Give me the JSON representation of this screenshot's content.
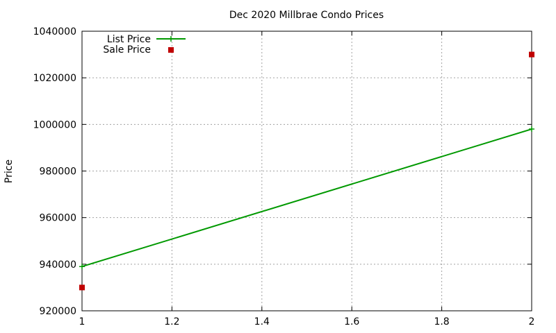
{
  "chart_data": {
    "type": "line",
    "title": "Dec 2020 Millbrae Condo Prices",
    "xlabel": "",
    "ylabel": "Price",
    "xlim": [
      1,
      2
    ],
    "ylim": [
      920000,
      1040000
    ],
    "xticks": [
      "1",
      "1.2",
      "1.4",
      "1.6",
      "1.8",
      "2"
    ],
    "xtick_values": [
      1,
      1.2,
      1.4,
      1.6,
      1.8,
      2
    ],
    "yticks": [
      "920000",
      "940000",
      "960000",
      "980000",
      "1000000",
      "1020000",
      "1040000"
    ],
    "ytick_values": [
      920000,
      940000,
      960000,
      980000,
      1000000,
      1020000,
      1040000
    ],
    "grid": true,
    "legend_position": "top-left",
    "series": [
      {
        "name": "List Price",
        "style": "linespoints",
        "color": "#009900",
        "x": [
          1,
          2
        ],
        "y": [
          939000,
          998000
        ]
      },
      {
        "name": "Sale Price",
        "style": "points",
        "color": "#c00000",
        "x": [
          1,
          2
        ],
        "y": [
          930000,
          1030000
        ]
      }
    ]
  }
}
